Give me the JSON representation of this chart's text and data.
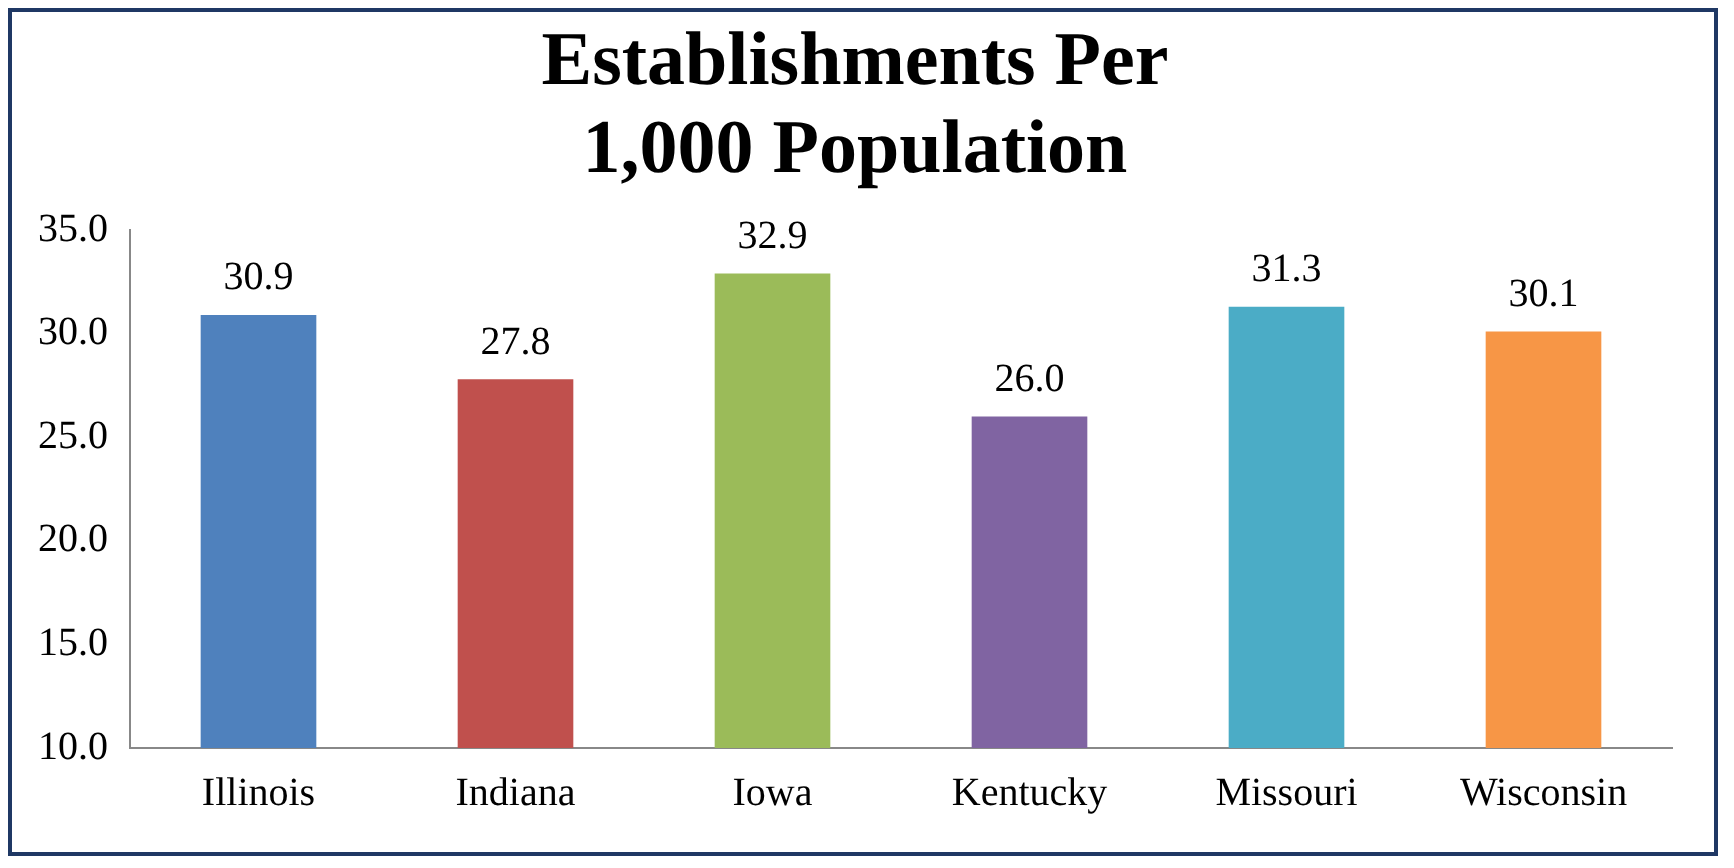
{
  "chart_data": {
    "type": "bar",
    "title": "Establishments Per 1,000 Population",
    "categories": [
      "Illinois",
      "Indiana",
      "Iowa",
      "Kentucky",
      "Missouri",
      "Wisconsin"
    ],
    "values": [
      30.9,
      27.8,
      32.9,
      26.0,
      31.3,
      30.1
    ],
    "colors": [
      "#4f81bd",
      "#c0504d",
      "#9bbb59",
      "#8064a2",
      "#4bacc6",
      "#f79646"
    ],
    "ylim": [
      10,
      35
    ],
    "yticks": [
      {
        "value": 10,
        "label": "10.0"
      },
      {
        "value": 15,
        "label": "15.0"
      },
      {
        "value": 20,
        "label": "20.0"
      },
      {
        "value": 25,
        "label": "25.0"
      },
      {
        "value": 30,
        "label": "30.0"
      },
      {
        "value": 35,
        "label": "35.0"
      }
    ],
    "value_labels": [
      "30.9",
      "27.8",
      "32.9",
      "26.0",
      "31.3",
      "30.1"
    ],
    "grid": false,
    "legend": false
  }
}
